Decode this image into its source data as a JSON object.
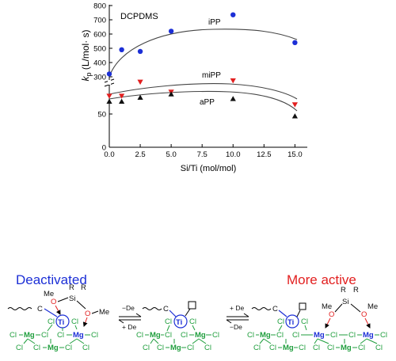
{
  "chart_data": {
    "type": "scatter",
    "legend_text": "DCPDMS",
    "xlabel": "Si/Ti (mol/mol)",
    "ylabel": "kp (L/mol·s)",
    "ylabel_main": "k",
    "ylabel_sub": "p",
    "ylabel_units": " (L/mol· s)",
    "x_ticks": [
      "0.0",
      "2.5",
      "5.0",
      "7.5",
      "10.0",
      "12.5",
      "15.0"
    ],
    "x_tick_values": [
      0,
      2.5,
      5,
      7.5,
      10,
      12.5,
      15
    ],
    "y_ticks_lower": [
      "0",
      "50"
    ],
    "y_ticks_upper": [
      "300",
      "400",
      "500",
      "600",
      "700",
      "800"
    ],
    "axis_break": true,
    "xlim": [
      0,
      16
    ],
    "series": [
      {
        "name": "iPP",
        "marker": "circle",
        "color": "#1c2fd6",
        "x": [
          0,
          1,
          2.5,
          5,
          10,
          15
        ],
        "y": [
          320,
          490,
          478,
          620,
          735,
          540
        ]
      },
      {
        "name": "miPP",
        "marker": "triangle-down",
        "color": "#e21f1f",
        "x": [
          0,
          1,
          2.5,
          5,
          10,
          15
        ],
        "y": [
          77,
          77,
          98,
          83,
          100,
          64
        ]
      },
      {
        "name": "aPP",
        "marker": "triangle-up",
        "color": "#111111",
        "x": [
          0,
          1,
          2.5,
          5,
          10,
          15
        ],
        "y": [
          69,
          69,
          75,
          80,
          73,
          47
        ]
      }
    ]
  },
  "scheme": {
    "left_title": "Deactivated",
    "right_title": "More active",
    "arrow_forward_label": "−De",
    "arrow_back_label": "+ De",
    "arrow2_forward_label": "+ De",
    "arrow2_back_label": "−De",
    "atoms": {
      "ti": "Ti",
      "mg": "Mg",
      "cl": "Cl",
      "si": "Si",
      "o": "O",
      "me": "Me",
      "r": "R",
      "c": "C"
    }
  }
}
